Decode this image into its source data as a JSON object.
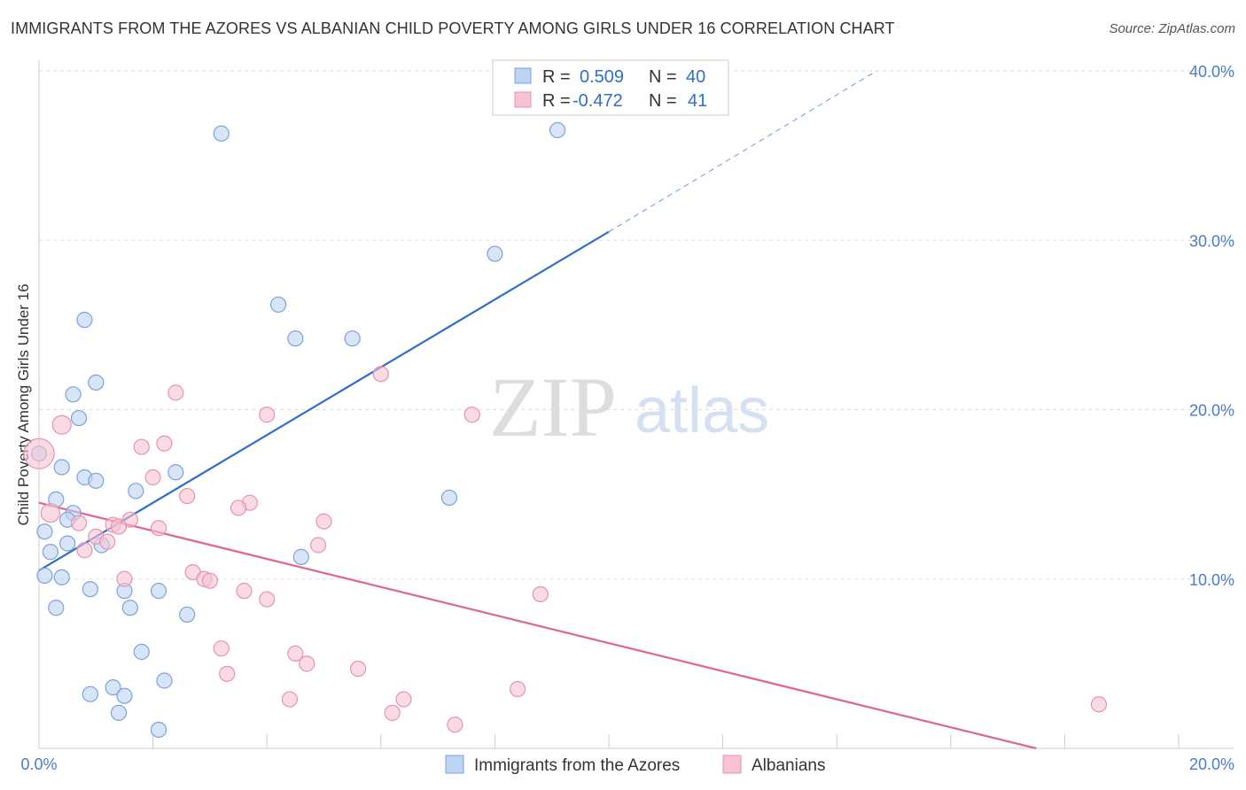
{
  "title": "IMMIGRANTS FROM THE AZORES VS ALBANIAN CHILD POVERTY AMONG GIRLS UNDER 16 CORRELATION CHART",
  "source": "Source: ZipAtlas.com",
  "watermark": {
    "zip": "ZIP",
    "atlas": "atlas"
  },
  "colors": {
    "blue_fill": "#bcd3f1",
    "blue_stroke": "#7aa3dc",
    "blue_line": "#2f6fc9",
    "pink_fill": "#f7c3d2",
    "pink_stroke": "#e693ad",
    "pink_line": "#e0648f",
    "tick_text": "#4a7cc9",
    "grid": "#dddddd"
  },
  "legend": {
    "rows": [
      {
        "r_label": "R =",
        "r_value": "0.509",
        "n_label": "N =",
        "n_value": "40"
      },
      {
        "r_label": "R =",
        "r_value": "-0.472",
        "n_label": "N =",
        "n_value": "41"
      }
    ]
  },
  "chart_data": {
    "type": "scatter",
    "title": "IMMIGRANTS FROM THE AZORES VS ALBANIAN CHILD POVERTY AMONG GIRLS UNDER 16 CORRELATION CHART",
    "xlabel": "",
    "ylabel": "Child Poverty Among Girls Under 16",
    "xlim": [
      0,
      20
    ],
    "ylim": [
      0,
      40
    ],
    "x_tick_labels": [
      "0.0%",
      "20.0%"
    ],
    "y_ticks": [
      10,
      20,
      30,
      40
    ],
    "y_tick_labels": [
      "10.0%",
      "20.0%",
      "30.0%",
      "40.0%"
    ],
    "grid": true,
    "legend_position": "bottom",
    "series": [
      {
        "name": "Immigrants from the Azores",
        "r": 0.509,
        "n": 40,
        "trend": {
          "x0": 0,
          "y0": 10.5,
          "x1": 10,
          "y1": 30.5,
          "dashed_to_x": 14.7,
          "dashed_to_y": 40
        },
        "points": [
          [
            3.2,
            36.3
          ],
          [
            9.1,
            36.5
          ],
          [
            8.0,
            29.2
          ],
          [
            4.2,
            26.2
          ],
          [
            0.8,
            25.3
          ],
          [
            4.5,
            24.2
          ],
          [
            5.5,
            24.2
          ],
          [
            1.0,
            21.6
          ],
          [
            0.6,
            20.9
          ],
          [
            0.7,
            19.5
          ],
          [
            0.0,
            17.4
          ],
          [
            0.4,
            16.6
          ],
          [
            2.4,
            16.3
          ],
          [
            0.8,
            16.0
          ],
          [
            1.0,
            15.8
          ],
          [
            1.7,
            15.2
          ],
          [
            7.2,
            14.8
          ],
          [
            0.3,
            14.7
          ],
          [
            0.6,
            13.9
          ],
          [
            0.5,
            13.5
          ],
          [
            0.1,
            12.8
          ],
          [
            0.5,
            12.1
          ],
          [
            1.1,
            12.0
          ],
          [
            0.2,
            11.6
          ],
          [
            4.6,
            11.3
          ],
          [
            0.1,
            10.2
          ],
          [
            0.4,
            10.1
          ],
          [
            0.9,
            9.4
          ],
          [
            1.5,
            9.3
          ],
          [
            2.1,
            9.3
          ],
          [
            0.3,
            8.3
          ],
          [
            1.6,
            8.3
          ],
          [
            2.6,
            7.9
          ],
          [
            1.8,
            5.7
          ],
          [
            2.2,
            4.0
          ],
          [
            1.3,
            3.6
          ],
          [
            0.9,
            3.2
          ],
          [
            1.5,
            3.1
          ],
          [
            1.4,
            2.1
          ],
          [
            2.1,
            1.1
          ]
        ]
      },
      {
        "name": "Albanians",
        "r": -0.472,
        "n": 41,
        "trend": {
          "x0": 0,
          "y0": 14.5,
          "x1": 17.5,
          "y1": 0
        },
        "points": [
          [
            0.0,
            17.4
          ],
          [
            6.0,
            22.1
          ],
          [
            2.4,
            21.0
          ],
          [
            4.0,
            19.7
          ],
          [
            7.6,
            19.7
          ],
          [
            0.4,
            19.1
          ],
          [
            2.2,
            18.0
          ],
          [
            1.8,
            17.8
          ],
          [
            2.0,
            16.0
          ],
          [
            2.6,
            14.9
          ],
          [
            3.7,
            14.5
          ],
          [
            3.5,
            14.2
          ],
          [
            0.2,
            13.9
          ],
          [
            0.7,
            13.3
          ],
          [
            1.6,
            13.5
          ],
          [
            5.0,
            13.4
          ],
          [
            1.3,
            13.2
          ],
          [
            2.1,
            13.0
          ],
          [
            1.0,
            12.5
          ],
          [
            1.2,
            12.2
          ],
          [
            4.9,
            12.0
          ],
          [
            0.8,
            11.7
          ],
          [
            2.7,
            10.4
          ],
          [
            2.9,
            10.0
          ],
          [
            3.0,
            9.9
          ],
          [
            1.5,
            10.0
          ],
          [
            3.6,
            9.3
          ],
          [
            8.8,
            9.1
          ],
          [
            4.0,
            8.8
          ],
          [
            3.2,
            5.9
          ],
          [
            4.5,
            5.6
          ],
          [
            4.7,
            5.0
          ],
          [
            5.6,
            4.7
          ],
          [
            3.3,
            4.4
          ],
          [
            8.4,
            3.5
          ],
          [
            6.4,
            2.9
          ],
          [
            4.4,
            2.9
          ],
          [
            6.2,
            2.1
          ],
          [
            7.3,
            1.4
          ],
          [
            18.6,
            2.6
          ],
          [
            1.4,
            13.1
          ]
        ]
      }
    ]
  }
}
